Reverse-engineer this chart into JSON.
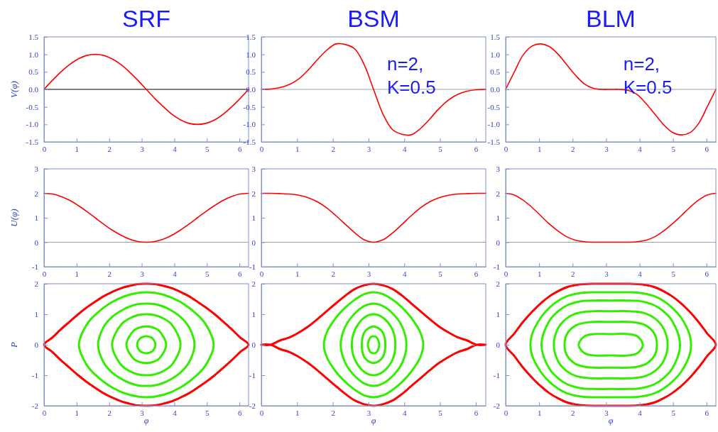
{
  "chart_data": [
    {
      "type": "line",
      "title": "SRF",
      "ylabel": "V(φ)",
      "xlim": [
        0,
        6.28
      ],
      "xticks": [
        0,
        1,
        2,
        3,
        4,
        5,
        6
      ],
      "ylim": [
        -1.5,
        1.5
      ],
      "yticks": [
        -1.5,
        {
          "value": -1,
          "label": "-1.0"
        },
        -0.5,
        {
          "value": 0,
          "label": "0.0"
        },
        0.5,
        {
          "value": 1,
          "label": "1.0"
        },
        1.5
      ],
      "ref_lines": [
        {
          "axis": "y",
          "value": 0,
          "color": "#000000"
        }
      ],
      "x": [
        0,
        0.26,
        0.52,
        0.79,
        1.05,
        1.31,
        1.57,
        1.83,
        2.09,
        2.36,
        2.62,
        2.88,
        3.14,
        3.4,
        3.67,
        3.93,
        4.19,
        4.45,
        4.71,
        4.97,
        5.24,
        5.5,
        5.76,
        6.02,
        6.28
      ],
      "series": [
        {
          "color": "#ff0000",
          "values": [
            0,
            0.26,
            0.5,
            0.71,
            0.87,
            0.97,
            1,
            0.97,
            0.87,
            0.71,
            0.5,
            0.26,
            0,
            -0.26,
            -0.5,
            -0.71,
            -0.87,
            -0.97,
            -1,
            -0.97,
            -0.87,
            -0.71,
            -0.5,
            -0.26,
            0
          ]
        }
      ]
    },
    {
      "type": "line",
      "title": "BSM",
      "annotations": [
        "n=2, K=0.5"
      ],
      "xlim": [
        0,
        6.28
      ],
      "xticks": [
        0,
        1,
        2,
        3,
        4,
        5,
        6
      ],
      "ylim": [
        -1.5,
        1.5
      ],
      "yticks": [
        -1.5,
        {
          "value": -1,
          "label": "-1.0"
        },
        -0.5,
        {
          "value": 0,
          "label": "0.0"
        },
        0.5,
        {
          "value": 1,
          "label": "1.0"
        },
        1.5
      ],
      "ref_lines": [
        {
          "axis": "y",
          "value": 0,
          "color": "#a0a0a0"
        }
      ],
      "x": [
        0,
        0.26,
        0.52,
        0.79,
        1.05,
        1.31,
        1.57,
        1.83,
        2.09,
        2.36,
        2.62,
        2.88,
        3.14,
        3.4,
        3.67,
        3.93,
        4.19,
        4.45,
        4.71,
        4.97,
        5.24,
        5.5,
        5.76,
        6.02,
        6.28
      ],
      "series": [
        {
          "color": "#ff0000",
          "values": [
            0,
            0.01,
            0.05,
            0.14,
            0.3,
            0.55,
            0.85,
            1.12,
            1.3,
            1.28,
            1.15,
            0.7,
            0,
            -0.7,
            -1.15,
            -1.28,
            -1.3,
            -1.12,
            -0.85,
            -0.55,
            -0.3,
            -0.14,
            -0.05,
            -0.01,
            0
          ]
        }
      ]
    },
    {
      "type": "line",
      "title": "BLM",
      "annotations": [
        "n=2, K=0.5"
      ],
      "xlim": [
        0,
        6.28
      ],
      "xticks": [
        0,
        1,
        2,
        3,
        4,
        5,
        6
      ],
      "ylim": [
        -1.5,
        1.5
      ],
      "yticks": [
        -1.5,
        {
          "value": -1,
          "label": "-1.0"
        },
        -0.5,
        {
          "value": 0,
          "label": "0.0"
        },
        0.5,
        {
          "value": 1,
          "label": "1.0"
        },
        1.5
      ],
      "ref_lines": [
        {
          "axis": "y",
          "value": 0,
          "color": "#a0a0a0"
        }
      ],
      "x": [
        0,
        0.26,
        0.52,
        0.79,
        1.05,
        1.31,
        1.57,
        1.83,
        2.09,
        2.36,
        2.62,
        2.88,
        3.14,
        3.4,
        3.67,
        3.93,
        4.19,
        4.45,
        4.71,
        4.97,
        5.24,
        5.5,
        5.76,
        6.02,
        6.28
      ],
      "series": [
        {
          "color": "#ff0000",
          "values": [
            0,
            0.5,
            0.98,
            1.24,
            1.3,
            1.22,
            1,
            0.7,
            0.4,
            0.15,
            0.03,
            0,
            0,
            0,
            -0.03,
            -0.15,
            -0.4,
            -0.7,
            -1,
            -1.22,
            -1.3,
            -1.24,
            -0.98,
            -0.5,
            0
          ]
        }
      ]
    },
    {
      "type": "line",
      "ylabel": "U(φ)",
      "xlim": [
        0,
        6.28
      ],
      "xticks": [
        0,
        1,
        2,
        3,
        4,
        5,
        6
      ],
      "ylim": [
        -1,
        3
      ],
      "yticks": [
        -1,
        0,
        1,
        2,
        3
      ],
      "ref_lines": [
        {
          "axis": "y",
          "value": 0,
          "color": "#a0a0a0"
        }
      ],
      "x": [
        0,
        0.26,
        0.52,
        0.79,
        1.05,
        1.31,
        1.57,
        1.83,
        2.09,
        2.36,
        2.62,
        2.88,
        3.14,
        3.4,
        3.67,
        3.93,
        4.19,
        4.45,
        4.71,
        4.97,
        5.24,
        5.5,
        5.76,
        6.02,
        6.28
      ],
      "series": [
        {
          "color": "#ff0000",
          "values": [
            2,
            1.97,
            1.87,
            1.71,
            1.5,
            1.26,
            1,
            0.74,
            0.5,
            0.29,
            0.13,
            0.03,
            0,
            0.03,
            0.13,
            0.29,
            0.5,
            0.74,
            1,
            1.26,
            1.5,
            1.71,
            1.87,
            1.97,
            2
          ]
        }
      ]
    },
    {
      "type": "line",
      "xlim": [
        0,
        6.28
      ],
      "xticks": [
        0,
        1,
        2,
        3,
        4,
        5,
        6
      ],
      "ylim": [
        -1,
        3
      ],
      "yticks": [
        -1,
        0,
        1,
        2,
        3
      ],
      "ref_lines": [
        {
          "axis": "y",
          "value": 0,
          "color": "#a0a0a0"
        }
      ],
      "x": [
        0,
        0.26,
        0.52,
        0.79,
        1.05,
        1.31,
        1.57,
        1.83,
        2.09,
        2.36,
        2.62,
        2.88,
        3.14,
        3.4,
        3.67,
        3.93,
        4.19,
        4.45,
        4.71,
        4.97,
        5.24,
        5.5,
        5.76,
        6.02,
        6.28
      ],
      "series": [
        {
          "color": "#ff0000",
          "values": [
            2,
            2,
            1.99,
            1.97,
            1.92,
            1.82,
            1.65,
            1.4,
            1.08,
            0.72,
            0.38,
            0.1,
            0,
            0.1,
            0.38,
            0.72,
            1.08,
            1.4,
            1.65,
            1.82,
            1.92,
            1.97,
            1.99,
            2,
            2
          ]
        }
      ]
    },
    {
      "type": "line",
      "xlim": [
        0,
        6.28
      ],
      "xticks": [
        0,
        1,
        2,
        3,
        4,
        5,
        6
      ],
      "ylim": [
        -1,
        3
      ],
      "yticks": [
        -1,
        0,
        1,
        2,
        3
      ],
      "ref_lines": [
        {
          "axis": "y",
          "value": 0,
          "color": "#a0a0a0"
        }
      ],
      "x": [
        0,
        0.26,
        0.52,
        0.79,
        1.05,
        1.31,
        1.57,
        1.83,
        2.09,
        2.36,
        2.62,
        2.88,
        3.14,
        3.4,
        3.67,
        3.93,
        4.19,
        4.45,
        4.71,
        4.97,
        5.24,
        5.5,
        5.76,
        6.02,
        6.28
      ],
      "series": [
        {
          "color": "#ff0000",
          "values": [
            2,
            1.93,
            1.72,
            1.42,
            1.08,
            0.74,
            0.45,
            0.22,
            0.08,
            0.02,
            0,
            0,
            0,
            0,
            0,
            0.02,
            0.08,
            0.22,
            0.45,
            0.74,
            1.08,
            1.42,
            1.72,
            1.93,
            2
          ]
        }
      ]
    },
    {
      "type": "line",
      "ylabel": "P",
      "xlabel": "φ",
      "xlim": [
        0,
        6.28
      ],
      "xticks": [
        0,
        1,
        2,
        3,
        4,
        5,
        6
      ],
      "ylim": [
        -2,
        2
      ],
      "yticks": [
        -2,
        -1,
        0,
        1,
        2
      ]
    },
    {
      "type": "line",
      "xlabel": "φ",
      "xlim": [
        0,
        6.28
      ],
      "xticks": [
        0,
        1,
        2,
        3,
        4,
        5,
        6
      ],
      "ylim": [
        -2,
        2
      ],
      "yticks": [
        -2,
        -1,
        0,
        1,
        2
      ]
    },
    {
      "type": "line",
      "xlabel": "φ",
      "xlim": [
        0,
        6.28
      ],
      "xticks": [
        0,
        1,
        2,
        3,
        4,
        5,
        6
      ],
      "ylim": [
        -2,
        2
      ],
      "yticks": [
        -2,
        -1,
        0,
        1,
        2
      ]
    }
  ]
}
